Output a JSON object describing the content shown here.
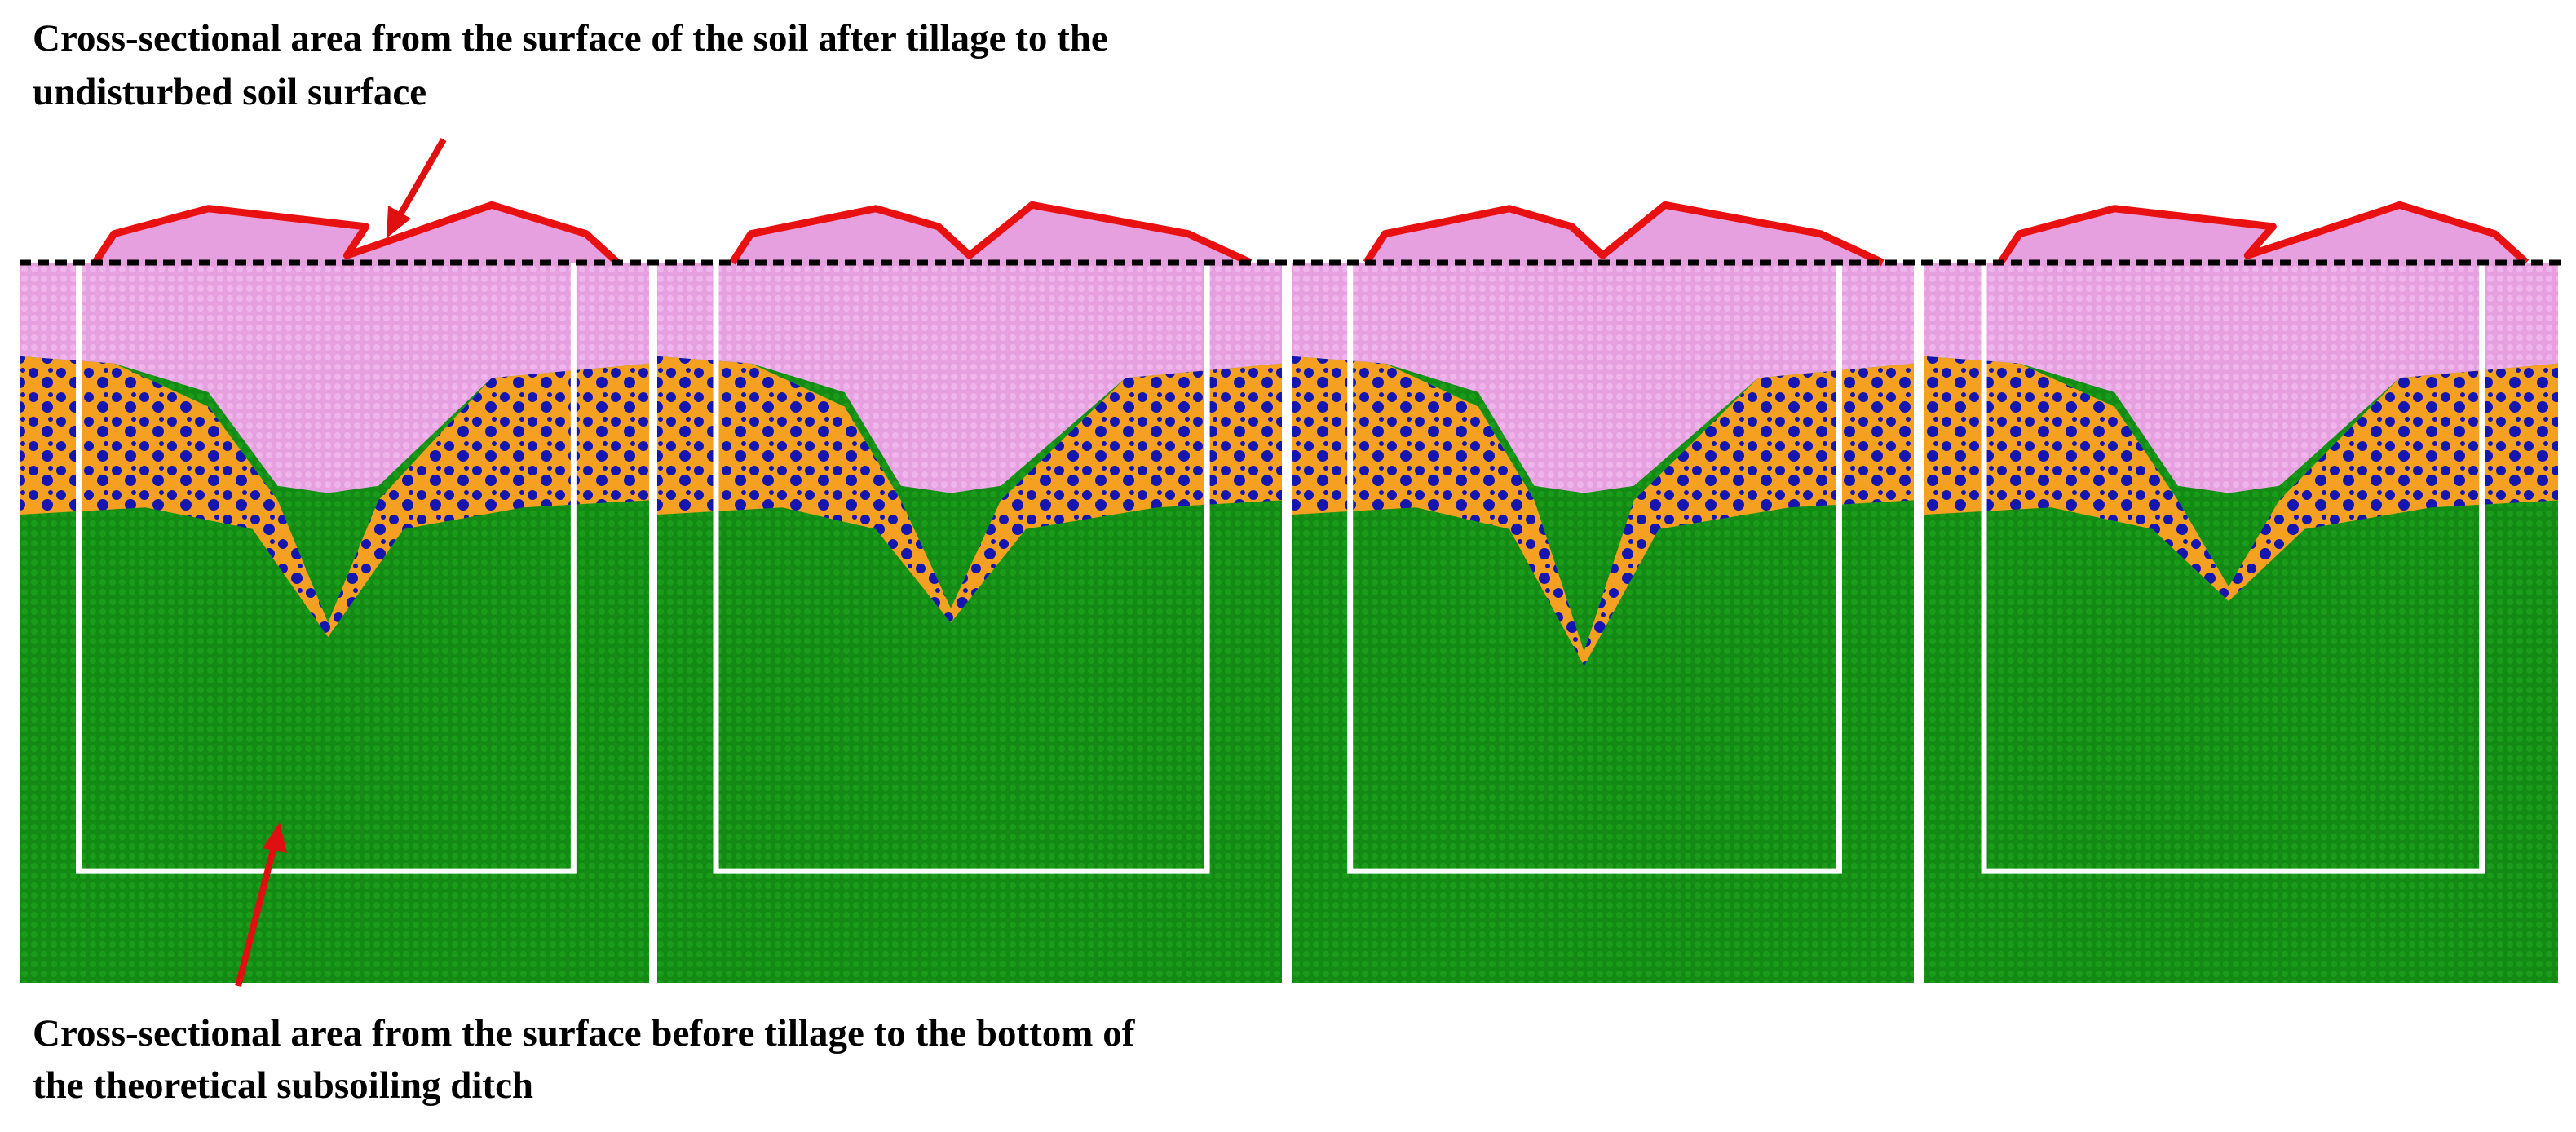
{
  "annotations": {
    "top": [
      "Cross-sectional area from the surface of the soil after tillage to the",
      "undisturbed soil surface"
    ],
    "bottom": [
      "Cross-sectional area from the surface before tillage to the bottom of",
      "the theoretical subsoiling ditch"
    ]
  }
}
